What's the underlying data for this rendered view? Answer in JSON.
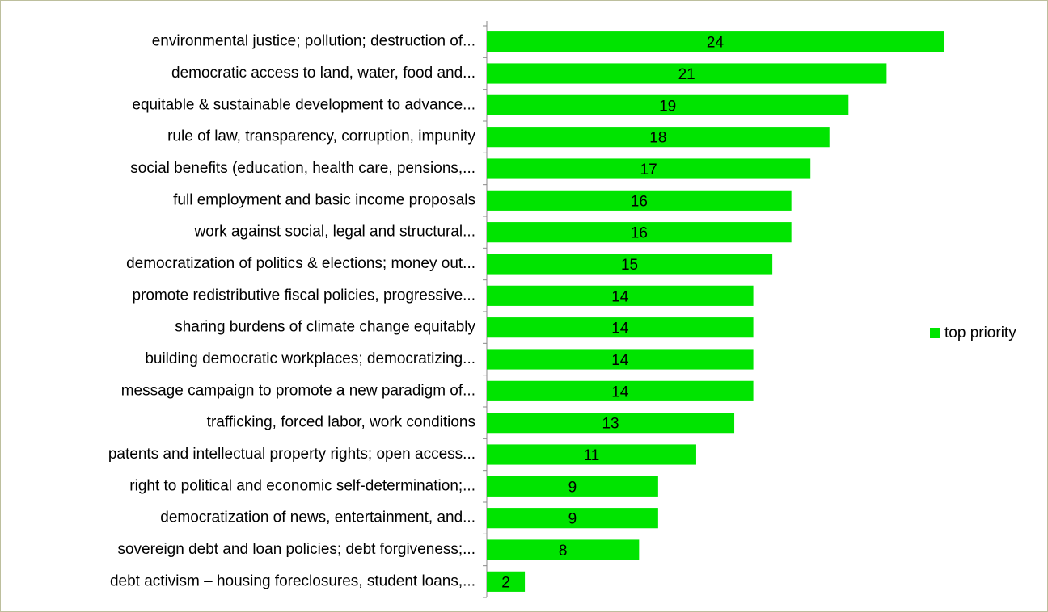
{
  "chart_data": {
    "type": "bar",
    "orientation": "horizontal",
    "categories": [
      "environmental justice; pollution; destruction of...",
      "democratic access to land, water, food and...",
      "equitable & sustainable development to advance...",
      "rule of law, transparency, corruption, impunity",
      "social benefits (education, health care, pensions,...",
      "full employment and basic income proposals",
      "work against social, legal and structural...",
      "democratization of politics & elections; money out...",
      "promote redistributive fiscal policies, progressive...",
      "sharing burdens of climate change equitably",
      "building democratic workplaces; democratizing...",
      "message campaign to promote a new paradigm of...",
      "trafficking, forced labor, work conditions",
      "patents and intellectual property rights; open access...",
      "right to political and economic self-determination;...",
      "democratization of news, entertainment, and...",
      "sovereign debt and loan policies; debt forgiveness;...",
      "debt activism – housing foreclosures, student loans,..."
    ],
    "series": [
      {
        "name": "top priority",
        "color": "#00e400",
        "values": [
          24,
          21,
          19,
          18,
          17,
          16,
          16,
          15,
          14,
          14,
          14,
          14,
          13,
          11,
          9,
          9,
          8,
          2
        ]
      }
    ],
    "legend": "right"
  }
}
